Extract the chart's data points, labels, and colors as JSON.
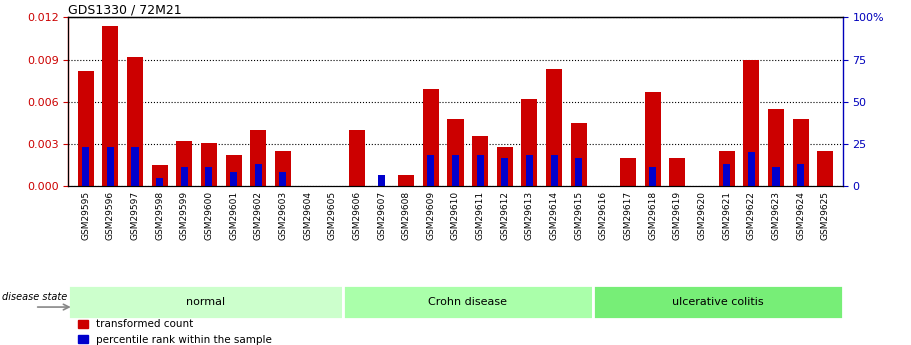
{
  "title": "GDS1330 / 72M21",
  "samples": [
    "GSM29595",
    "GSM29596",
    "GSM29597",
    "GSM29598",
    "GSM29599",
    "GSM29600",
    "GSM29601",
    "GSM29602",
    "GSM29603",
    "GSM29604",
    "GSM29605",
    "GSM29606",
    "GSM29607",
    "GSM29608",
    "GSM29609",
    "GSM29610",
    "GSM29611",
    "GSM29612",
    "GSM29613",
    "GSM29614",
    "GSM29615",
    "GSM29616",
    "GSM29617",
    "GSM29618",
    "GSM29619",
    "GSM29620",
    "GSM29621",
    "GSM29622",
    "GSM29623",
    "GSM29624",
    "GSM29625"
  ],
  "transformed_count": [
    0.0082,
    0.0114,
    0.0092,
    0.0015,
    0.0032,
    0.0031,
    0.0022,
    0.004,
    0.0025,
    0.0,
    0.0,
    0.004,
    0.0,
    0.0008,
    0.0069,
    0.0048,
    0.0036,
    0.0028,
    0.0062,
    0.0083,
    0.0045,
    0.0,
    0.002,
    0.0067,
    0.002,
    0.0,
    0.0025,
    0.009,
    0.0055,
    0.0048,
    0.0025
  ],
  "percentile_rank_scaled": [
    0.0028,
    0.0028,
    0.0028,
    0.0006,
    0.0014,
    0.0014,
    0.001,
    0.0016,
    0.001,
    0.0,
    0.0,
    0.0,
    0.0008,
    0.0,
    0.0022,
    0.0022,
    0.0022,
    0.002,
    0.0022,
    0.0022,
    0.002,
    0.0,
    0.0,
    0.0014,
    0.0,
    0.0,
    0.0016,
    0.0024,
    0.0014,
    0.0016,
    0.0
  ],
  "groups": [
    {
      "label": "normal",
      "start": 0,
      "end": 11,
      "color": "#ccffcc"
    },
    {
      "label": "Crohn disease",
      "start": 11,
      "end": 21,
      "color": "#aaffaa"
    },
    {
      "label": "ulcerative colitis",
      "start": 21,
      "end": 31,
      "color": "#77ee77"
    }
  ],
  "bar_color_red": "#cc0000",
  "bar_color_blue": "#0000cc",
  "ylim_left": [
    0,
    0.012
  ],
  "ylim_right": [
    0,
    100
  ],
  "yticks_left": [
    0,
    0.003,
    0.006,
    0.009,
    0.012
  ],
  "yticks_right": [
    0,
    25,
    50,
    75,
    100
  ],
  "ylabel_left_color": "#cc0000",
  "ylabel_right_color": "#0000bb",
  "legend_red": "transformed count",
  "legend_blue": "percentile rank within the sample",
  "disease_state_label": "disease state"
}
